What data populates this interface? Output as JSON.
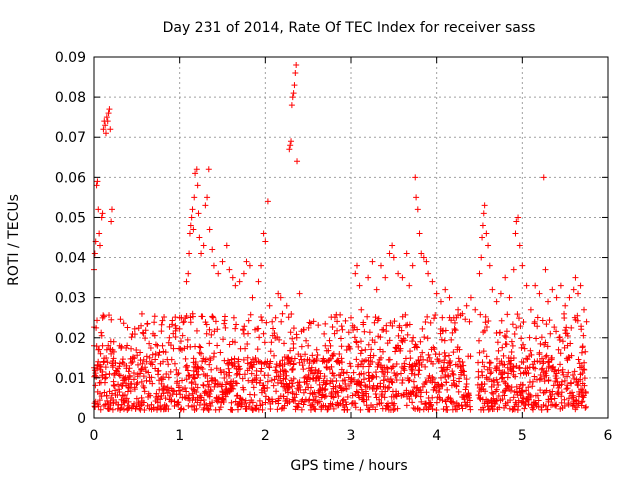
{
  "chart_data": {
    "type": "scatter",
    "title": "Day 231 of 2014, Rate Of TEC Index for receiver sass",
    "xlabel": "GPS time / hours",
    "ylabel": "ROTI / TECUs",
    "xlim": [
      0,
      6
    ],
    "ylim": [
      0,
      0.09
    ],
    "xticks": [
      0,
      1,
      2,
      3,
      4,
      5,
      6
    ],
    "xtick_labels": [
      "0",
      "1",
      "2",
      "3",
      "4",
      "5",
      "6"
    ],
    "yticks": [
      0,
      0.01,
      0.02,
      0.03,
      0.04,
      0.05,
      0.06,
      0.07,
      0.08,
      0.09
    ],
    "ytick_labels": [
      "0",
      "0.01",
      "0.02",
      "0.03",
      "0.04",
      "0.05",
      "0.06",
      "0.07",
      "0.08",
      "0.09"
    ],
    "grid": true,
    "marker": "+",
    "marker_color": "#ff0000",
    "series": [
      {
        "name": "ROTI",
        "points": [
          [
            0.0,
            0.037
          ],
          [
            0.01,
            0.041
          ],
          [
            0.02,
            0.044
          ],
          [
            0.03,
            0.058
          ],
          [
            0.04,
            0.059
          ],
          [
            0.05,
            0.052
          ],
          [
            0.06,
            0.046
          ],
          [
            0.07,
            0.043
          ],
          [
            0.09,
            0.05
          ],
          [
            0.1,
            0.051
          ],
          [
            0.11,
            0.072
          ],
          [
            0.12,
            0.074
          ],
          [
            0.13,
            0.073
          ],
          [
            0.14,
            0.071
          ],
          [
            0.15,
            0.075
          ],
          [
            0.16,
            0.074
          ],
          [
            0.17,
            0.076
          ],
          [
            0.18,
            0.077
          ],
          [
            0.19,
            0.072
          ],
          [
            0.2,
            0.049
          ],
          [
            0.21,
            0.052
          ],
          [
            0.23,
            0.019
          ],
          [
            0.0,
            0.018
          ],
          [
            0.05,
            0.017
          ],
          [
            0.1,
            0.018
          ],
          [
            0.15,
            0.017
          ],
          [
            0.2,
            0.016
          ],
          [
            0.3,
            0.018
          ],
          [
            0.38,
            0.013
          ],
          [
            0.45,
            0.014
          ],
          [
            0.55,
            0.012
          ],
          [
            0.65,
            0.015
          ],
          [
            0.72,
            0.016
          ],
          [
            0.8,
            0.018
          ],
          [
            0.88,
            0.02
          ],
          [
            0.95,
            0.023
          ],
          [
            1.0,
            0.025
          ],
          [
            1.02,
            0.025
          ],
          [
            1.05,
            0.024
          ],
          [
            1.08,
            0.034
          ],
          [
            1.1,
            0.036
          ],
          [
            1.11,
            0.041
          ],
          [
            1.12,
            0.046
          ],
          [
            1.13,
            0.048
          ],
          [
            1.14,
            0.05
          ],
          [
            1.15,
            0.052
          ],
          [
            1.16,
            0.047
          ],
          [
            1.17,
            0.055
          ],
          [
            1.18,
            0.061
          ],
          [
            1.2,
            0.062
          ],
          [
            1.21,
            0.058
          ],
          [
            1.22,
            0.051
          ],
          [
            1.23,
            0.045
          ],
          [
            1.25,
            0.041
          ],
          [
            1.28,
            0.043
          ],
          [
            1.3,
            0.053
          ],
          [
            1.32,
            0.055
          ],
          [
            1.34,
            0.062
          ],
          [
            1.35,
            0.047
          ],
          [
            1.38,
            0.042
          ],
          [
            1.4,
            0.038
          ],
          [
            1.45,
            0.036
          ],
          [
            1.5,
            0.039
          ],
          [
            1.55,
            0.043
          ],
          [
            1.58,
            0.037
          ],
          [
            1.62,
            0.035
          ],
          [
            1.65,
            0.033
          ],
          [
            1.7,
            0.034
          ],
          [
            1.75,
            0.036
          ],
          [
            1.78,
            0.039
          ],
          [
            1.82,
            0.038
          ],
          [
            1.85,
            0.03
          ],
          [
            1.88,
            0.022
          ],
          [
            1.92,
            0.034
          ],
          [
            1.95,
            0.038
          ],
          [
            1.98,
            0.046
          ],
          [
            2.0,
            0.044
          ],
          [
            2.03,
            0.054
          ],
          [
            2.05,
            0.028
          ],
          [
            2.08,
            0.024
          ],
          [
            2.12,
            0.025
          ],
          [
            2.15,
            0.031
          ],
          [
            2.18,
            0.03
          ],
          [
            2.2,
            0.026
          ],
          [
            2.25,
            0.028
          ],
          [
            2.28,
            0.067
          ],
          [
            2.29,
            0.068
          ],
          [
            2.3,
            0.069
          ],
          [
            2.31,
            0.078
          ],
          [
            2.32,
            0.08
          ],
          [
            2.33,
            0.081
          ],
          [
            2.34,
            0.083
          ],
          [
            2.35,
            0.086
          ],
          [
            2.36,
            0.088
          ],
          [
            2.37,
            0.064
          ],
          [
            2.4,
            0.031
          ],
          [
            2.45,
            0.022
          ],
          [
            2.5,
            0.018
          ],
          [
            2.6,
            0.017
          ],
          [
            2.7,
            0.018
          ],
          [
            2.8,
            0.016
          ],
          [
            2.9,
            0.022
          ],
          [
            3.0,
            0.025
          ],
          [
            3.02,
            0.023
          ],
          [
            3.05,
            0.036
          ],
          [
            3.07,
            0.038
          ],
          [
            3.1,
            0.033
          ],
          [
            3.12,
            0.027
          ],
          [
            3.2,
            0.035
          ],
          [
            3.25,
            0.039
          ],
          [
            3.3,
            0.032
          ],
          [
            3.35,
            0.038
          ],
          [
            3.4,
            0.035
          ],
          [
            3.45,
            0.041
          ],
          [
            3.48,
            0.043
          ],
          [
            3.5,
            0.04
          ],
          [
            3.55,
            0.036
          ],
          [
            3.6,
            0.035
          ],
          [
            3.65,
            0.041
          ],
          [
            3.68,
            0.033
          ],
          [
            3.72,
            0.038
          ],
          [
            3.75,
            0.06
          ],
          [
            3.76,
            0.055
          ],
          [
            3.78,
            0.052
          ],
          [
            3.8,
            0.046
          ],
          [
            3.82,
            0.041
          ],
          [
            3.85,
            0.04
          ],
          [
            3.88,
            0.039
          ],
          [
            3.9,
            0.036
          ],
          [
            3.95,
            0.034
          ],
          [
            4.0,
            0.031
          ],
          [
            4.05,
            0.029
          ],
          [
            4.1,
            0.032
          ],
          [
            4.15,
            0.03
          ],
          [
            4.2,
            0.025
          ],
          [
            4.25,
            0.027
          ],
          [
            4.3,
            0.026
          ],
          [
            4.35,
            0.028
          ],
          [
            4.4,
            0.03
          ],
          [
            4.45,
            0.027
          ],
          [
            4.5,
            0.036
          ],
          [
            4.52,
            0.04
          ],
          [
            4.53,
            0.045
          ],
          [
            4.54,
            0.048
          ],
          [
            4.55,
            0.051
          ],
          [
            4.56,
            0.053
          ],
          [
            4.58,
            0.046
          ],
          [
            4.6,
            0.043
          ],
          [
            4.62,
            0.038
          ],
          [
            4.65,
            0.032
          ],
          [
            4.7,
            0.029
          ],
          [
            4.75,
            0.031
          ],
          [
            4.8,
            0.035
          ],
          [
            4.85,
            0.03
          ],
          [
            4.9,
            0.037
          ],
          [
            4.92,
            0.046
          ],
          [
            4.93,
            0.049
          ],
          [
            4.95,
            0.05
          ],
          [
            4.97,
            0.043
          ],
          [
            5.0,
            0.038
          ],
          [
            5.05,
            0.033
          ],
          [
            5.1,
            0.027
          ],
          [
            5.15,
            0.033
          ],
          [
            5.2,
            0.031
          ],
          [
            5.25,
            0.06
          ],
          [
            5.27,
            0.037
          ],
          [
            5.3,
            0.029
          ],
          [
            5.35,
            0.032
          ],
          [
            5.4,
            0.03
          ],
          [
            5.45,
            0.033
          ],
          [
            5.5,
            0.028
          ],
          [
            5.55,
            0.03
          ],
          [
            5.6,
            0.032
          ],
          [
            5.62,
            0.035
          ],
          [
            5.65,
            0.031
          ],
          [
            5.68,
            0.033
          ],
          [
            5.72,
            0.027
          ],
          [
            5.75,
            0.024
          ]
        ],
        "background_band": {
          "description_free": true,
          "x_range": [
            0.0,
            5.75
          ],
          "y_range": [
            0.002,
            0.026
          ],
          "gap": [
            4.4,
            4.48
          ]
        }
      }
    ]
  }
}
